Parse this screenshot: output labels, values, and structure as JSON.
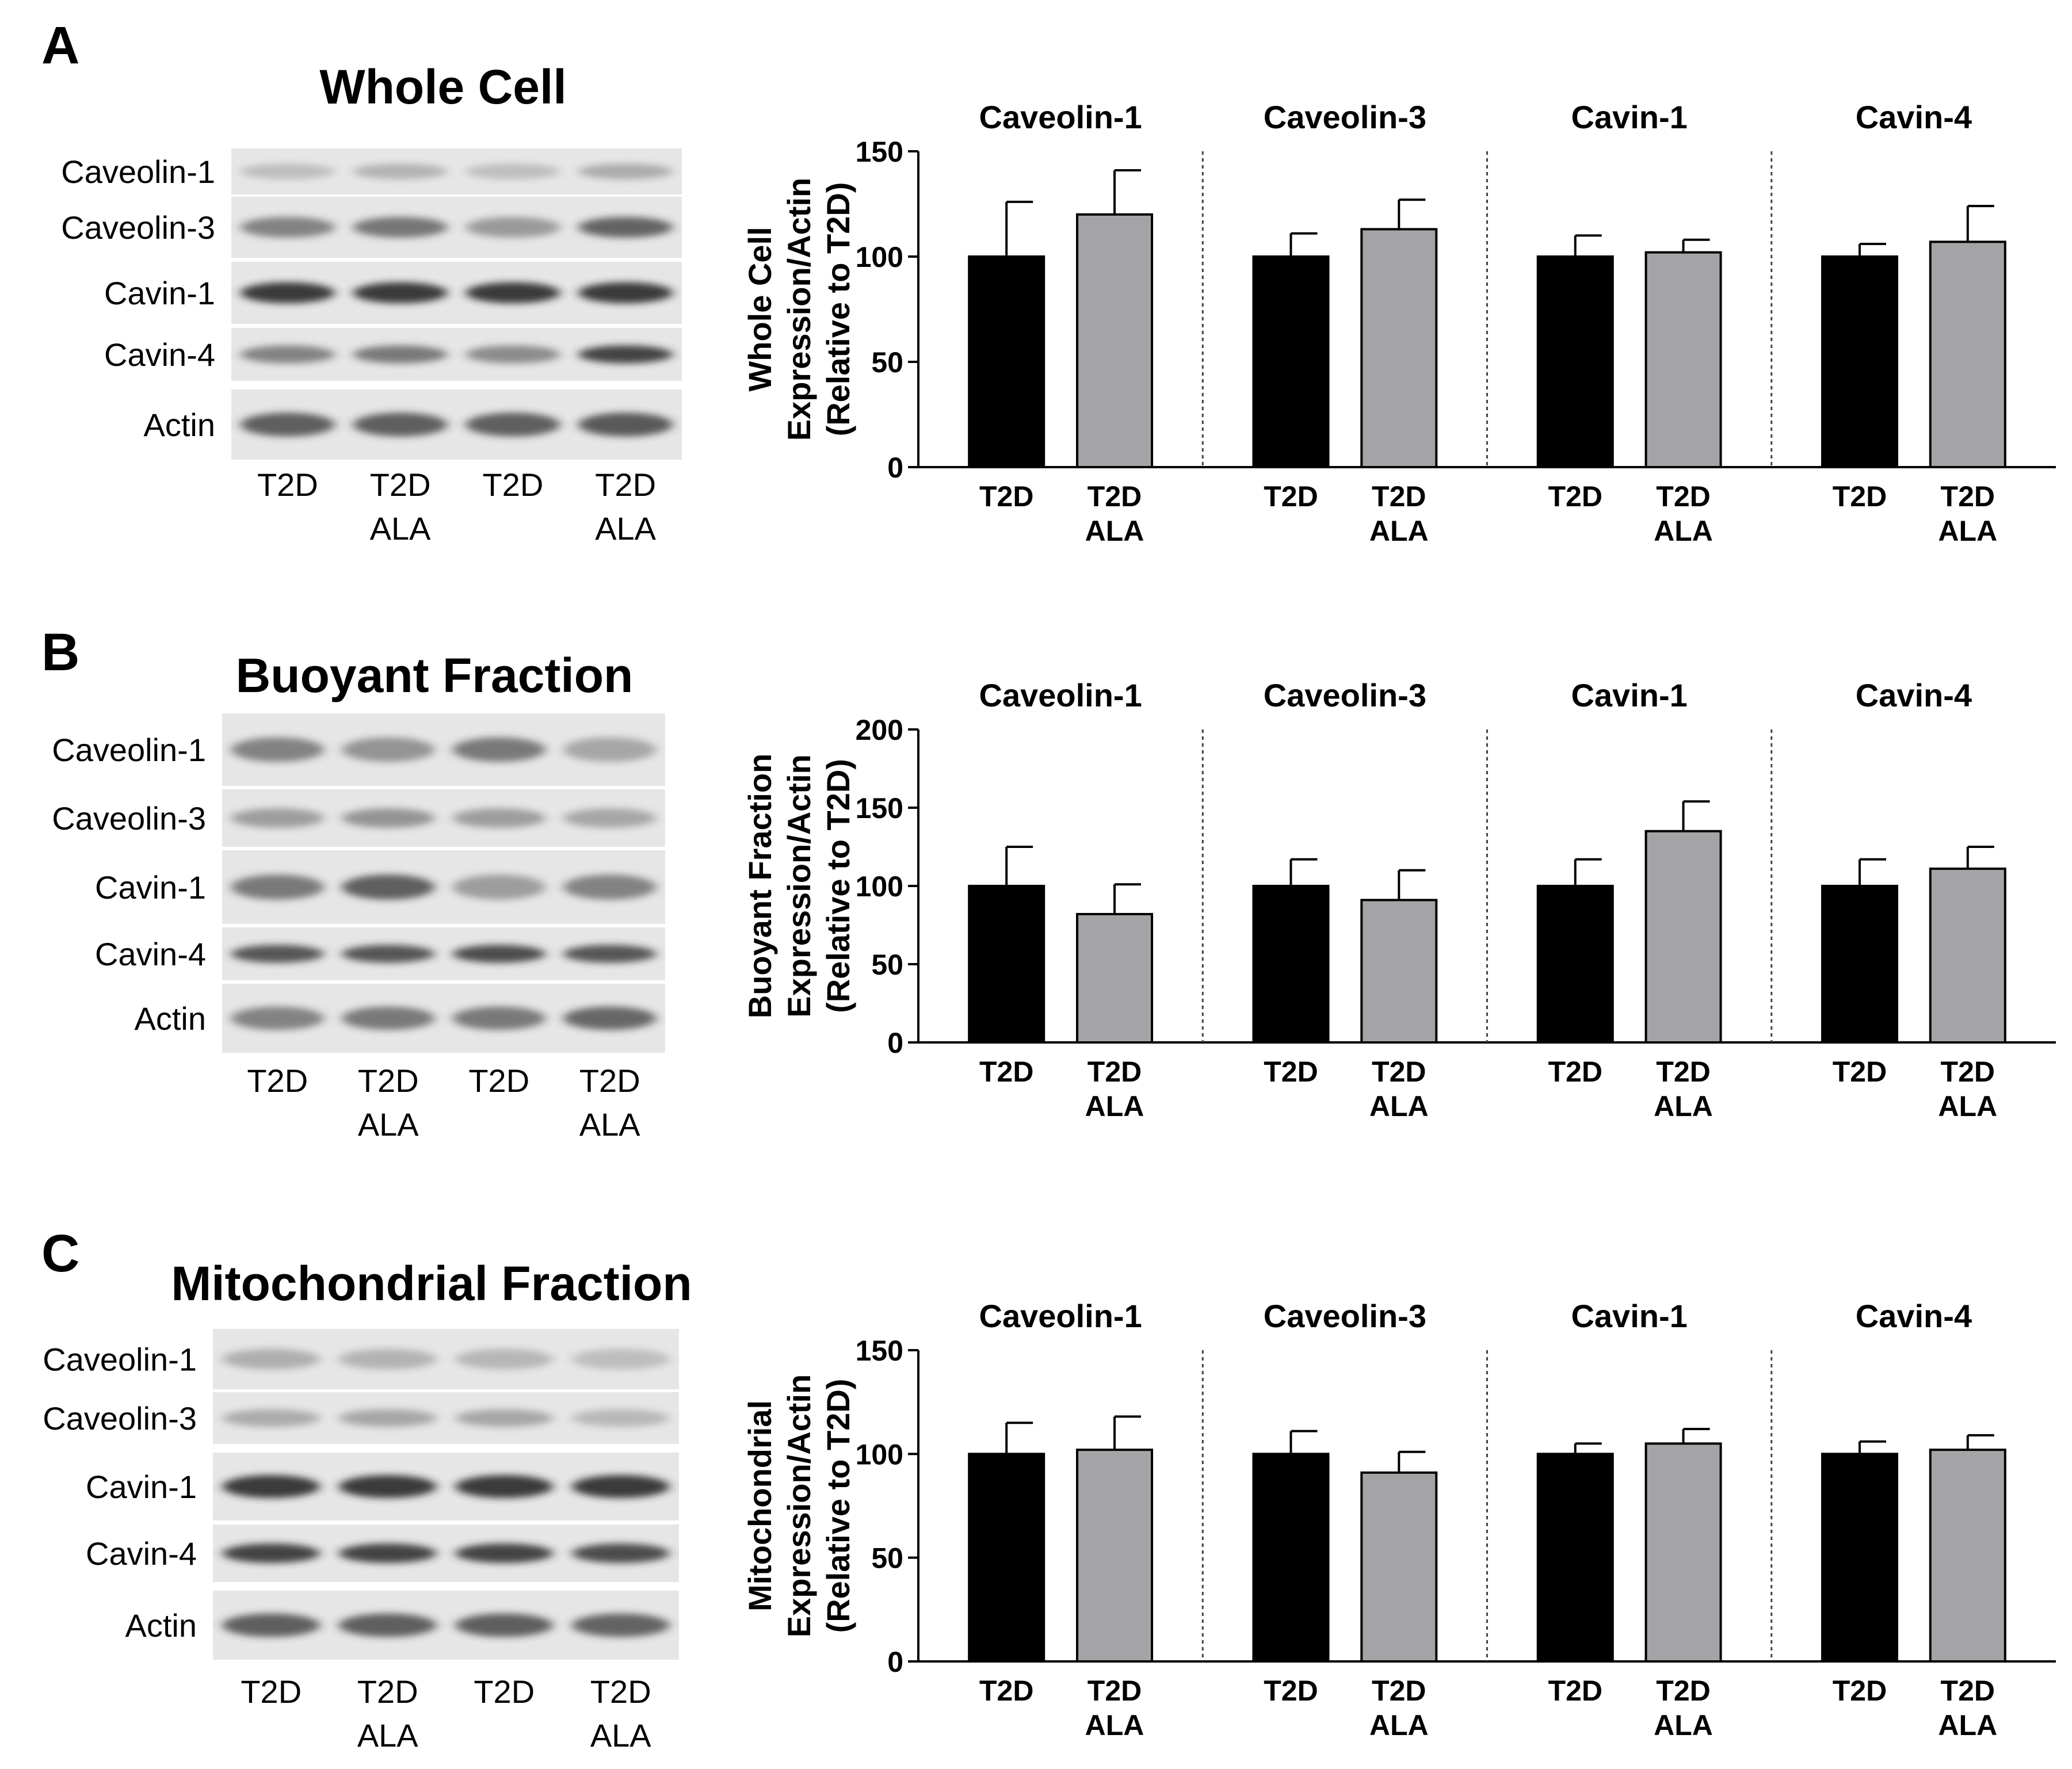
{
  "colors": {
    "t2d_bar": "#000000",
    "ala_bar": "#a4a4a6",
    "axis": "#000000",
    "divider": "#444444",
    "blot_background": "#e6e6e6",
    "band": "#333333"
  },
  "panels": [
    {
      "letter": "A",
      "blot": {
        "title": "Whole Cell",
        "rows": [
          "Caveolin-1",
          "Caveolin-3",
          "Cavin-1",
          "Cavin-4",
          "Actin"
        ],
        "band_intensity": [
          [
            0.22,
            0.28,
            0.22,
            0.32
          ],
          [
            0.55,
            0.62,
            0.42,
            0.72
          ],
          [
            0.95,
            0.95,
            0.95,
            0.95
          ],
          [
            0.55,
            0.6,
            0.5,
            0.9
          ],
          [
            0.75,
            0.75,
            0.75,
            0.78
          ]
        ],
        "lanes": [
          {
            "line1": "T2D",
            "line2": ""
          },
          {
            "line1": "T2D",
            "line2": "ALA"
          },
          {
            "line1": "T2D",
            "line2": ""
          },
          {
            "line1": "T2D",
            "line2": "ALA"
          }
        ]
      },
      "chart_data": {
        "type": "bar",
        "ylabel_lines": [
          "Whole Cell",
          "Expression/Actin",
          "(Relative to T2D)"
        ],
        "ylim": [
          0,
          150
        ],
        "yticks": [
          0,
          50,
          100,
          150
        ],
        "groups": [
          {
            "name": "Caveolin-1",
            "categories": [
              {
                "line1": "T2D",
                "line2": ""
              },
              {
                "line1": "T2D",
                "line2": "ALA"
              }
            ],
            "values": [
              100,
              120
            ],
            "errors": [
              26,
              21
            ]
          },
          {
            "name": "Caveolin-3",
            "categories": [
              {
                "line1": "T2D",
                "line2": ""
              },
              {
                "line1": "T2D",
                "line2": "ALA"
              }
            ],
            "values": [
              100,
              113
            ],
            "errors": [
              11,
              14
            ]
          },
          {
            "name": "Cavin-1",
            "categories": [
              {
                "line1": "T2D",
                "line2": ""
              },
              {
                "line1": "T2D",
                "line2": "ALA"
              }
            ],
            "values": [
              100,
              102
            ],
            "errors": [
              10,
              6
            ]
          },
          {
            "name": "Cavin-4",
            "categories": [
              {
                "line1": "T2D",
                "line2": ""
              },
              {
                "line1": "T2D",
                "line2": "ALA"
              }
            ],
            "values": [
              100,
              107
            ],
            "errors": [
              6,
              17
            ]
          }
        ]
      }
    },
    {
      "letter": "B",
      "blot": {
        "title": "Buoyant Fraction",
        "rows": [
          "Caveolin-1",
          "Caveolin-3",
          "Cavin-1",
          "Cavin-4",
          "Actin"
        ],
        "band_intensity": [
          [
            0.55,
            0.45,
            0.6,
            0.35
          ],
          [
            0.4,
            0.45,
            0.4,
            0.35
          ],
          [
            0.6,
            0.75,
            0.4,
            0.55
          ],
          [
            0.8,
            0.8,
            0.85,
            0.8
          ],
          [
            0.55,
            0.6,
            0.6,
            0.7
          ]
        ],
        "lanes": [
          {
            "line1": "T2D",
            "line2": ""
          },
          {
            "line1": "T2D",
            "line2": "ALA"
          },
          {
            "line1": "T2D",
            "line2": ""
          },
          {
            "line1": "T2D",
            "line2": "ALA"
          }
        ]
      },
      "chart_data": {
        "type": "bar",
        "ylabel_lines": [
          "Buoyant  Fraction",
          "Expression/Actin",
          "(Relative to  T2D)"
        ],
        "ylim": [
          0,
          200
        ],
        "yticks": [
          0,
          50,
          100,
          150,
          200
        ],
        "groups": [
          {
            "name": "Caveolin-1",
            "categories": [
              {
                "line1": "T2D",
                "line2": ""
              },
              {
                "line1": "T2D",
                "line2": "ALA"
              }
            ],
            "values": [
              100,
              82
            ],
            "errors": [
              25,
              19
            ]
          },
          {
            "name": "Caveolin-3",
            "categories": [
              {
                "line1": "T2D",
                "line2": ""
              },
              {
                "line1": "T2D",
                "line2": "ALA"
              }
            ],
            "values": [
              100,
              91
            ],
            "errors": [
              17,
              19
            ]
          },
          {
            "name": "Cavin-1",
            "categories": [
              {
                "line1": "T2D",
                "line2": ""
              },
              {
                "line1": "T2D",
                "line2": "ALA"
              }
            ],
            "values": [
              100,
              135
            ],
            "errors": [
              17,
              19
            ]
          },
          {
            "name": "Cavin-4",
            "categories": [
              {
                "line1": "T2D",
                "line2": ""
              },
              {
                "line1": "T2D",
                "line2": "ALA"
              }
            ],
            "values": [
              100,
              111
            ],
            "errors": [
              17,
              14
            ]
          }
        ]
      }
    },
    {
      "letter": "C",
      "blot": {
        "title": "Mitochondrial Fraction",
        "rows": [
          "Caveolin-1",
          "Caveolin-3",
          "Cavin-1",
          "Cavin-4",
          "Actin"
        ],
        "band_intensity": [
          [
            0.3,
            0.28,
            0.26,
            0.22
          ],
          [
            0.32,
            0.35,
            0.35,
            0.25
          ],
          [
            0.95,
            0.95,
            0.95,
            0.95
          ],
          [
            0.9,
            0.9,
            0.9,
            0.85
          ],
          [
            0.75,
            0.75,
            0.75,
            0.72
          ]
        ],
        "lanes": [
          {
            "line1": "T2D",
            "line2": ""
          },
          {
            "line1": "T2D",
            "line2": "ALA"
          },
          {
            "line1": "T2D",
            "line2": ""
          },
          {
            "line1": "T2D",
            "line2": "ALA"
          }
        ]
      },
      "chart_data": {
        "type": "bar",
        "ylabel_lines": [
          "Mitochondrial",
          "Expression/Actin",
          "(Relative to T2D)"
        ],
        "ylim": [
          0,
          150
        ],
        "yticks": [
          0,
          50,
          100,
          150
        ],
        "groups": [
          {
            "name": "Caveolin-1",
            "categories": [
              {
                "line1": "T2D",
                "line2": ""
              },
              {
                "line1": "T2D",
                "line2": "ALA"
              }
            ],
            "values": [
              100,
              102
            ],
            "errors": [
              15,
              16
            ]
          },
          {
            "name": "Caveolin-3",
            "categories": [
              {
                "line1": "T2D",
                "line2": ""
              },
              {
                "line1": "T2D",
                "line2": "ALA"
              }
            ],
            "values": [
              100,
              91
            ],
            "errors": [
              11,
              10
            ]
          },
          {
            "name": "Cavin-1",
            "categories": [
              {
                "line1": "T2D",
                "line2": ""
              },
              {
                "line1": "T2D",
                "line2": "ALA"
              }
            ],
            "values": [
              100,
              105
            ],
            "errors": [
              5,
              7
            ]
          },
          {
            "name": "Cavin-4",
            "categories": [
              {
                "line1": "T2D",
                "line2": ""
              },
              {
                "line1": "T2D",
                "line2": "ALA"
              }
            ],
            "values": [
              100,
              102
            ],
            "errors": [
              6,
              7
            ]
          }
        ]
      }
    }
  ]
}
